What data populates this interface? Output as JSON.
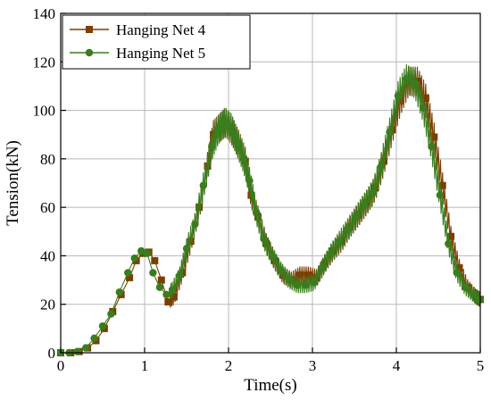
{
  "chart_data": {
    "type": "line",
    "xlabel": "Time(s)",
    "ylabel": "Tension(kN)",
    "xlim": [
      0,
      5
    ],
    "ylim": [
      0,
      140
    ],
    "xticks": [
      0,
      1,
      2,
      3,
      4,
      5
    ],
    "yticks": [
      0,
      20,
      40,
      60,
      80,
      100,
      120,
      140
    ],
    "grid": true,
    "legend_position": "top-left",
    "series": [
      {
        "name": "Hanging Net 4",
        "color": "#7B3F00",
        "marker": "square",
        "x": [
          0.0,
          0.12,
          0.22,
          0.32,
          0.42,
          0.52,
          0.62,
          0.72,
          0.82,
          0.9,
          0.98,
          1.05,
          1.12,
          1.2,
          1.28,
          1.35,
          1.45,
          1.55,
          1.65,
          1.75,
          1.82,
          1.9,
          1.97,
          2.05,
          2.12,
          2.2,
          2.27,
          2.35,
          2.45,
          2.55,
          2.65,
          2.75,
          2.85,
          2.95,
          3.05,
          3.15,
          3.25,
          3.35,
          3.45,
          3.55,
          3.65,
          3.75,
          3.85,
          3.95,
          4.05,
          4.15,
          4.25,
          4.35,
          4.45,
          4.55,
          4.65,
          4.75,
          4.85,
          4.95,
          5.0
        ],
        "y": [
          0,
          0,
          0.5,
          2,
          5,
          10,
          17,
          24,
          31,
          38,
          41,
          41.5,
          38,
          30,
          21,
          23,
          33,
          46,
          60,
          77,
          90,
          93,
          95,
          91,
          86,
          79,
          65,
          56,
          45,
          38,
          32,
          30,
          32,
          32,
          31,
          37,
          42,
          46,
          52,
          57,
          62,
          68,
          79,
          92,
          104,
          112,
          112,
          105,
          89,
          69,
          48,
          35,
          27,
          23,
          22
        ]
      },
      {
        "name": "Hanging Net 5",
        "color": "#3A7D1E",
        "marker": "circle",
        "x": [
          0.0,
          0.1,
          0.2,
          0.3,
          0.4,
          0.5,
          0.6,
          0.7,
          0.8,
          0.88,
          0.96,
          1.03,
          1.1,
          1.18,
          1.26,
          1.33,
          1.42,
          1.5,
          1.6,
          1.7,
          1.8,
          1.88,
          1.95,
          2.03,
          2.1,
          2.18,
          2.25,
          2.33,
          2.42,
          2.52,
          2.62,
          2.72,
          2.82,
          2.92,
          3.02,
          3.12,
          3.22,
          3.32,
          3.42,
          3.52,
          3.62,
          3.72,
          3.82,
          3.92,
          4.02,
          4.12,
          4.22,
          4.32,
          4.42,
          4.52,
          4.62,
          4.72,
          4.82,
          4.92,
          5.0
        ],
        "y": [
          0,
          0,
          0.5,
          2,
          6,
          11,
          16,
          25,
          33,
          39,
          42,
          41,
          33,
          27,
          24,
          26,
          32,
          43,
          53,
          69,
          85,
          92,
          95,
          93,
          87,
          80,
          71,
          58,
          47,
          40,
          34,
          30,
          28,
          28,
          29,
          35,
          41,
          46,
          51,
          56,
          61,
          66,
          77,
          91,
          106,
          113,
          111,
          101,
          85,
          65,
          45,
          33,
          27,
          24,
          22
        ]
      }
    ]
  }
}
